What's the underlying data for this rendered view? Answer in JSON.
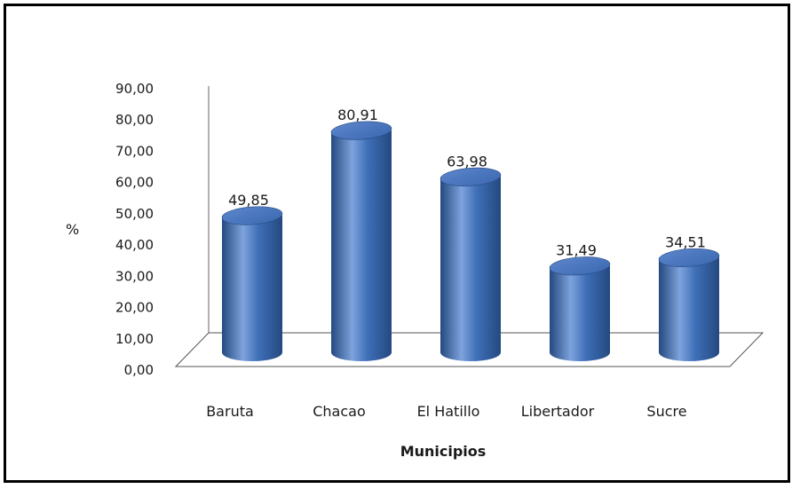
{
  "chart_data": {
    "type": "bar",
    "categories": [
      "Baruta",
      "Chacao",
      "El Hatillo",
      "Libertador",
      "Sucre"
    ],
    "values": [
      49.85,
      80.91,
      63.98,
      31.49,
      34.51
    ],
    "value_labels": [
      "49,85",
      "80,91",
      "63,98",
      "31,49",
      "34,51"
    ],
    "title": "",
    "xlabel": "Municipios",
    "ylabel": "%",
    "ylim": [
      0,
      90
    ],
    "yticks": [
      0,
      10,
      20,
      30,
      40,
      50,
      60,
      70,
      80,
      90
    ],
    "ytick_labels": [
      "0,00",
      "10,00",
      "20,00",
      "30,00",
      "40,00",
      "50,00",
      "60,00",
      "70,00",
      "80,00",
      "90,00"
    ],
    "style": "3d-cylinder",
    "grid": false,
    "legend": "none",
    "colors": {
      "bar": "#3f6fb8",
      "bar_dark": "#24497f",
      "bar_light": "#7ea3dd",
      "floor": "#555555"
    }
  }
}
